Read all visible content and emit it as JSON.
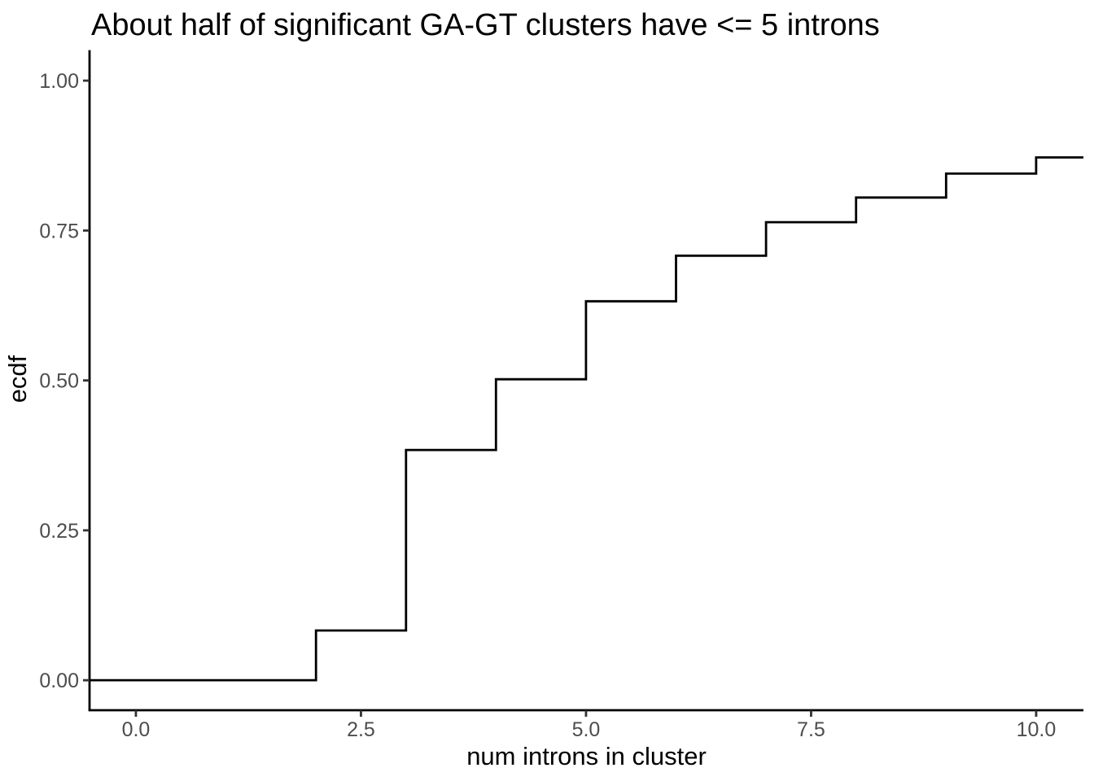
{
  "chart_data": {
    "type": "line",
    "subtype": "ecdf-step",
    "title": "About half of significant GA-GT clusters have <= 5 introns",
    "xlabel": "num introns in cluster",
    "ylabel": "ecdf",
    "x_ticks": [
      {
        "value": 0,
        "label": "0.0"
      },
      {
        "value": 2.5,
        "label": "2.5"
      },
      {
        "value": 5,
        "label": "5.0"
      },
      {
        "value": 7.5,
        "label": "7.5"
      },
      {
        "value": 10,
        "label": "10.0"
      }
    ],
    "y_ticks": [
      {
        "value": 0,
        "label": "0.00"
      },
      {
        "value": 0.25,
        "label": "0.25"
      },
      {
        "value": 0.5,
        "label": "0.50"
      },
      {
        "value": 0.75,
        "label": "0.75"
      },
      {
        "value": 1,
        "label": "1.00"
      }
    ],
    "xlim": [
      -0.515,
      10.525
    ],
    "ylim": [
      -0.05,
      1.049
    ],
    "grid": "off",
    "legend": "none",
    "ecdf_start": 0,
    "steps": [
      {
        "x": 2,
        "ecdf": 0.083
      },
      {
        "x": 3,
        "ecdf": 0.384
      },
      {
        "x": 4,
        "ecdf": 0.502
      },
      {
        "x": 5,
        "ecdf": 0.632
      },
      {
        "x": 6,
        "ecdf": 0.708
      },
      {
        "x": 7,
        "ecdf": 0.764
      },
      {
        "x": 8,
        "ecdf": 0.805
      },
      {
        "x": 9,
        "ecdf": 0.845
      },
      {
        "x": 10,
        "ecdf": 0.872
      }
    ],
    "extend_to_right_edge": true,
    "colors": {
      "line": "#000000",
      "axis_line": "#000000",
      "tick_mark": "#333333",
      "tick_label": "#4d4d4d",
      "title": "#000000",
      "background": "#ffffff"
    }
  }
}
